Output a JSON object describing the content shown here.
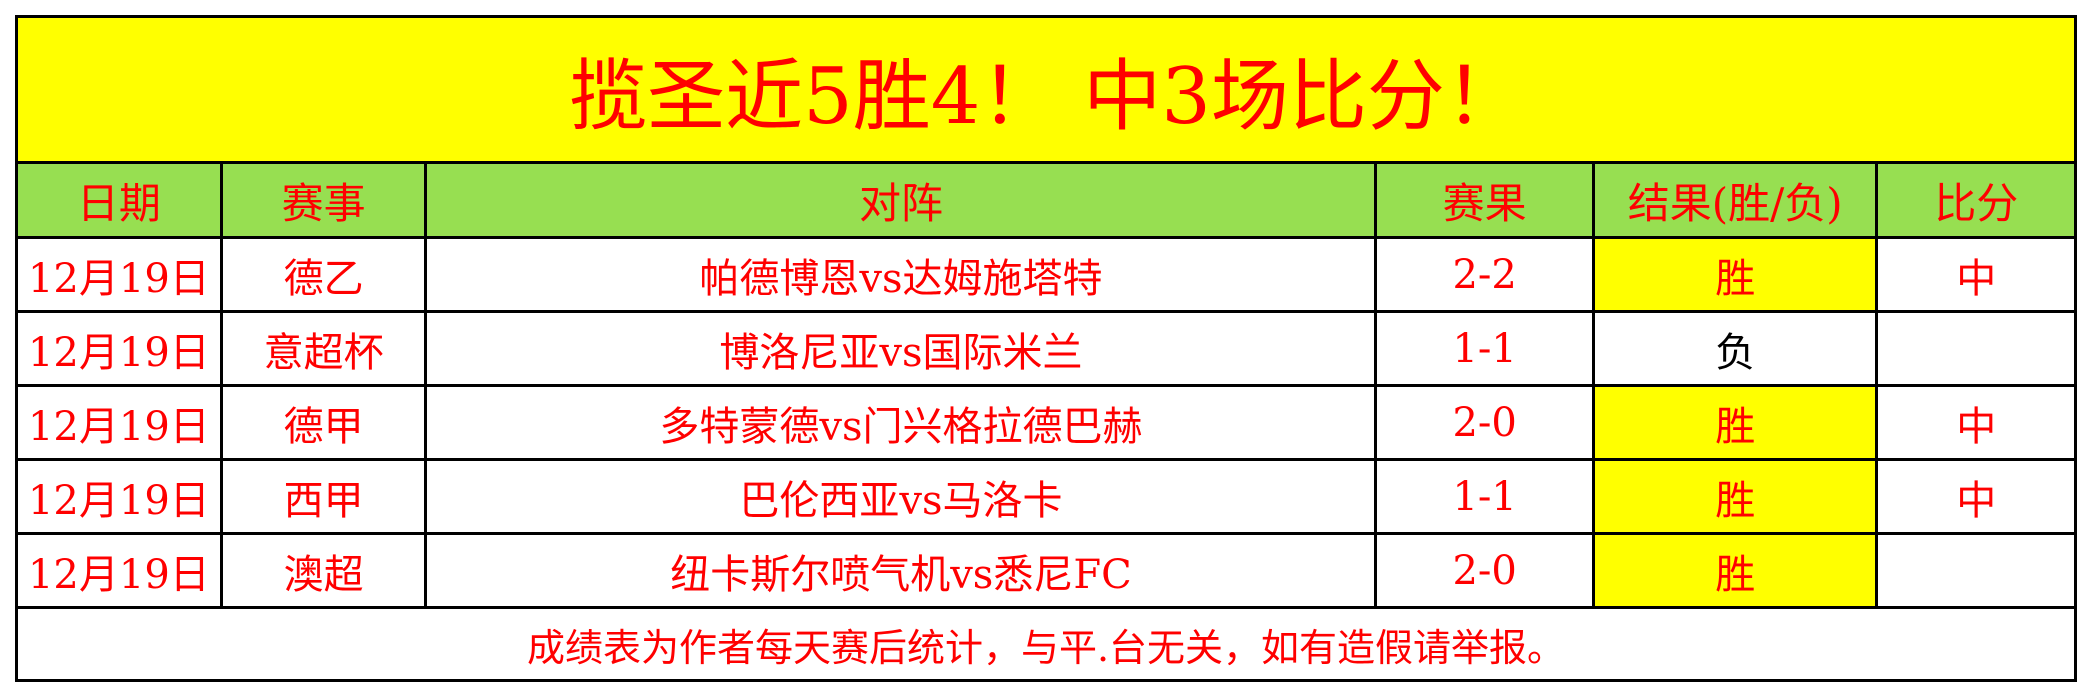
{
  "title": "揽圣近5胜4！ 中3场比分！",
  "headers": [
    "日期",
    "赛事",
    "对阵",
    "赛果",
    "结果(胜/负)",
    "比分"
  ],
  "rows": [
    {
      "date": "12月19日",
      "league": "德乙",
      "match": "帕德博恩vs达姆施塔特",
      "score": "2-2",
      "result": "胜",
      "hit": "中"
    },
    {
      "date": "12月19日",
      "league": "意超杯",
      "match": "博洛尼亚vs国际米兰",
      "score": "1-1",
      "result": "负",
      "hit": ""
    },
    {
      "date": "12月19日",
      "league": "德甲",
      "match": "多特蒙德vs门兴格拉德巴赫",
      "score": "2-0",
      "result": "胜",
      "hit": "中"
    },
    {
      "date": "12月19日",
      "league": "西甲",
      "match": "巴伦西亚vs马洛卡",
      "score": "1-1",
      "result": "胜",
      "hit": "中"
    },
    {
      "date": "12月19日",
      "league": "澳超",
      "match": "纽卡斯尔喷气机vs悉尼FC",
      "score": "2-0",
      "result": "胜",
      "hit": ""
    }
  ],
  "footer": "成绩表为作者每天赛后统计，与平.台无关，如有造假请举报。",
  "colors": {
    "title_bg": "#ffff00",
    "header_bg": "#97df51",
    "text": "#ff0000",
    "win_bg": "#ffff00",
    "loss_text": "#000000"
  }
}
